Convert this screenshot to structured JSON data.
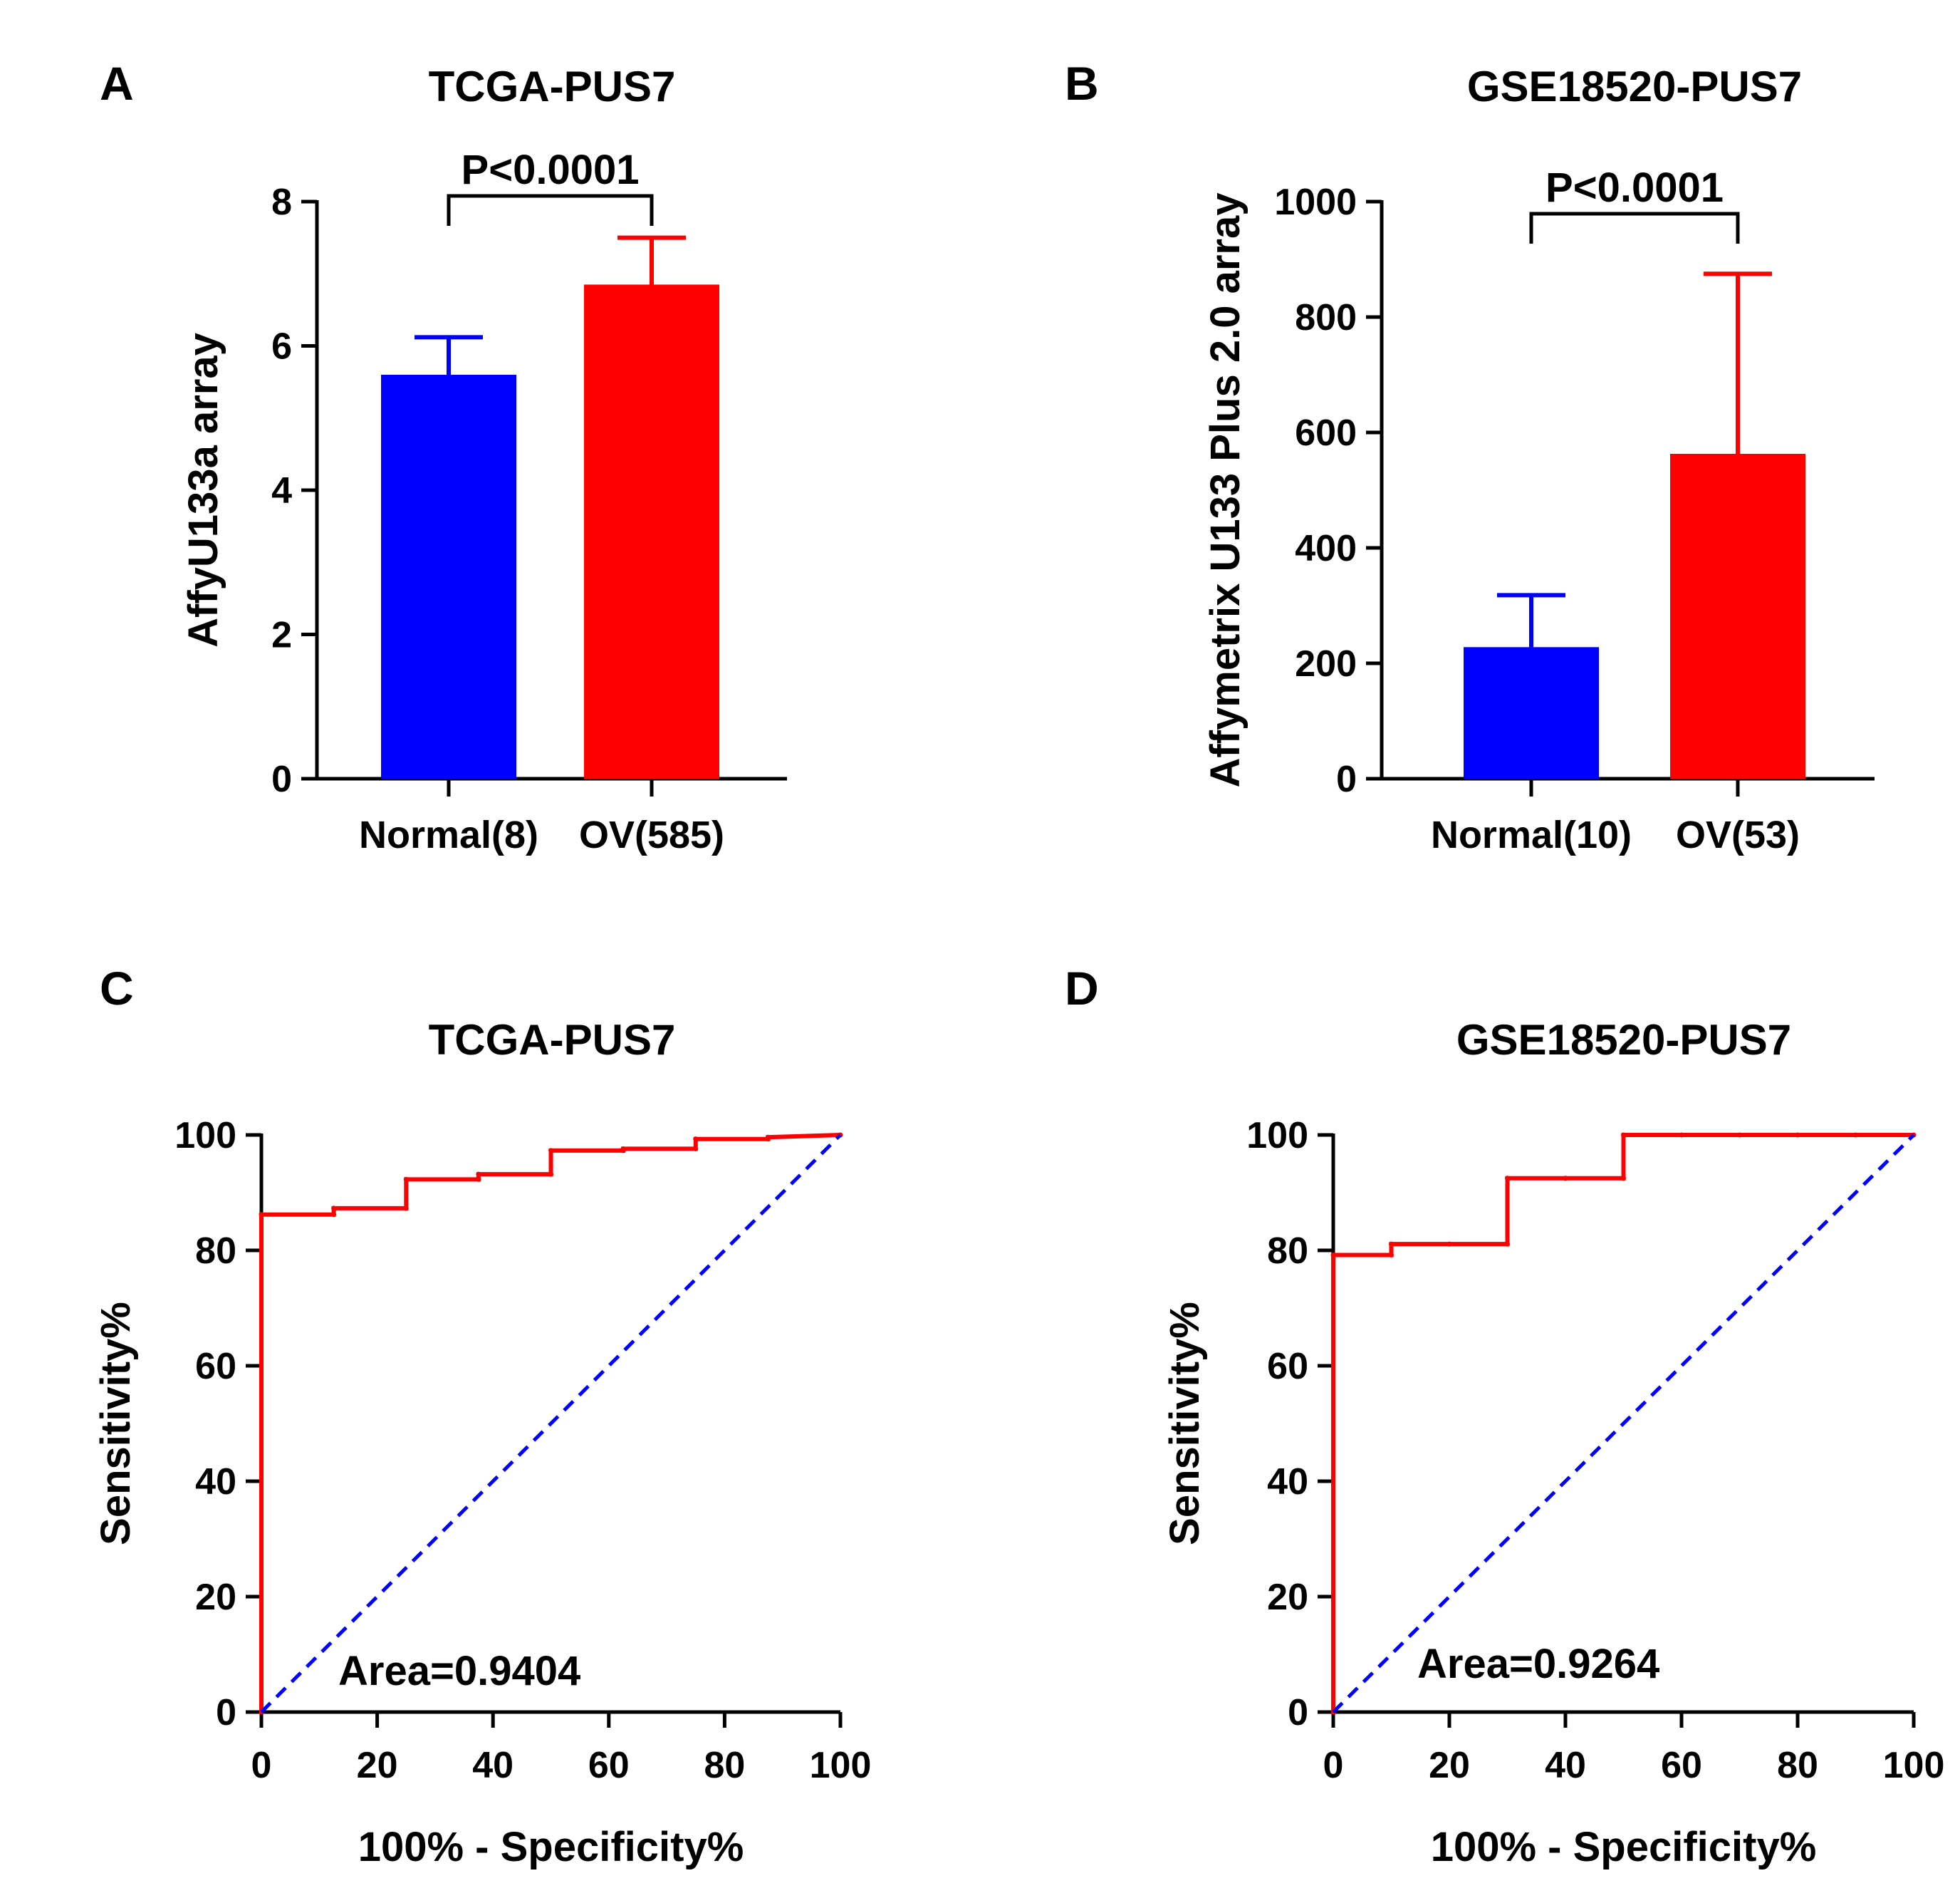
{
  "chart_data": [
    {
      "panel": "A",
      "type": "bar",
      "title": "TCGA-PUS7",
      "ylabel": "AffyU133a array",
      "xlabel": "",
      "ylim": [
        0,
        8
      ],
      "yticks": [
        0,
        2,
        4,
        6,
        8
      ],
      "categories": [
        "Normal(8)",
        "OV(585)"
      ],
      "values": [
        5.6,
        6.85
      ],
      "errors": [
        0.52,
        0.65
      ],
      "colors": [
        "#0000ff",
        "#ff0000"
      ],
      "annotation": "P<0.0001"
    },
    {
      "panel": "B",
      "type": "bar",
      "title": "GSE18520-PUS7",
      "ylabel": "Affymetrix U133 Plus 2.0 array",
      "xlabel": "",
      "ylim": [
        0,
        1000
      ],
      "yticks": [
        0,
        200,
        400,
        600,
        800,
        1000
      ],
      "categories": [
        "Normal(10)",
        "OV(53)"
      ],
      "values": [
        228,
        563
      ],
      "errors": [
        90,
        312
      ],
      "colors": [
        "#0000ff",
        "#ff0000"
      ],
      "annotation": "P<0.0001"
    },
    {
      "panel": "C",
      "type": "line",
      "title": "TCGA-PUS7",
      "xlabel": "100% - Specificity%",
      "ylabel": "Sensitivity%",
      "xlim": [
        0,
        100
      ],
      "ylim": [
        0,
        100
      ],
      "xticks": [
        0,
        20,
        40,
        60,
        80,
        100
      ],
      "yticks": [
        0,
        20,
        40,
        60,
        80,
        100
      ],
      "series": [
        {
          "name": "ROC",
          "color": "#ff0000",
          "style": "solid",
          "x": [
            0,
            0,
            12.5,
            12.5,
            25,
            25,
            37.5,
            37.5,
            50,
            50,
            62.5,
            62.5,
            75,
            75,
            87.5,
            87.5,
            100
          ],
          "y": [
            0,
            86.2,
            86.2,
            87.3,
            87.3,
            92.3,
            92.3,
            93.2,
            93.2,
            97.3,
            97.3,
            97.6,
            97.6,
            99.3,
            99.3,
            99.6,
            100
          ]
        },
        {
          "name": "Reference",
          "color": "#0000ff",
          "style": "dashed",
          "x": [
            0,
            100
          ],
          "y": [
            0,
            100
          ]
        }
      ],
      "annotation": "Area=0.9404"
    },
    {
      "panel": "D",
      "type": "line",
      "title": "GSE18520-PUS7",
      "xlabel": "100% - Specificity%",
      "ylabel": "Sensitivity%",
      "xlim": [
        0,
        100
      ],
      "ylim": [
        0,
        100
      ],
      "xticks": [
        0,
        20,
        40,
        60,
        80,
        100
      ],
      "yticks": [
        0,
        20,
        40,
        60,
        80,
        100
      ],
      "series": [
        {
          "name": "ROC",
          "color": "#ff0000",
          "style": "solid",
          "x": [
            0,
            0,
            10,
            10,
            20,
            30,
            30,
            40,
            50,
            50,
            60,
            70,
            80,
            90,
            100
          ],
          "y": [
            0,
            79.2,
            79.2,
            81.1,
            81.1,
            81.1,
            92.5,
            92.5,
            92.5,
            100,
            100,
            100,
            100,
            100,
            100
          ]
        },
        {
          "name": "Reference",
          "color": "#0000ff",
          "style": "dashed",
          "x": [
            0,
            100
          ],
          "y": [
            0,
            100
          ]
        }
      ],
      "annotation": "Area=0.9264"
    }
  ]
}
